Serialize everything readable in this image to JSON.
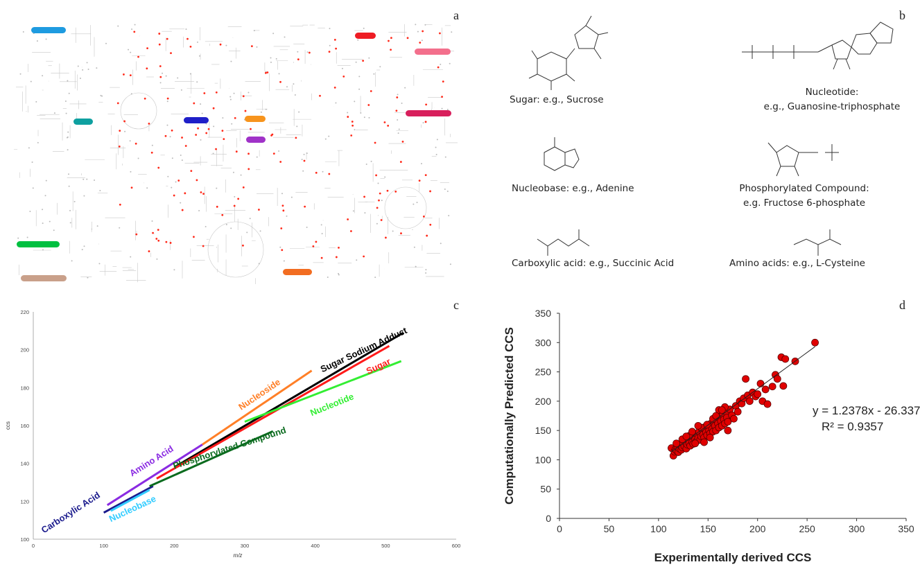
{
  "panels": {
    "a": {
      "letter": "a"
    },
    "b": {
      "letter": "b"
    },
    "c": {
      "letter": "c"
    },
    "d": {
      "letter": "d"
    }
  },
  "pathway_map": {
    "tag_colors": [
      "#1e9be0",
      "#ee1c24",
      "#f36f8c",
      "#0ea0a0",
      "#1f1fc8",
      "#f7941d",
      "#a032c8",
      "#d81f5c",
      "#00c040",
      "#c9a08a",
      "#f26d21"
    ],
    "highlight_color": "#ff2a1a"
  },
  "molecules": {
    "sugar": {
      "caption": "Sugar: e.g., Sucrose",
      "icon": "sucrose-structure"
    },
    "nucleotide": {
      "caption_line1": "Nucleotide:",
      "caption_line2": "e.g., Guanosine-triphosphate",
      "icon": "gtp-structure"
    },
    "nucleobase": {
      "caption": "Nucleobase: e.g., Adenine",
      "icon": "adenine-structure"
    },
    "phosphorylated": {
      "caption_line1": "Phosphorylated Compound:",
      "caption_line2": "e.g. Fructose 6-phosphate",
      "icon": "fructose-6-phosphate-structure"
    },
    "carboxylic": {
      "caption": "Carboxylic acid: e.g., Succinic Acid",
      "icon": "succinic-acid-structure"
    },
    "amino": {
      "caption": "Amino acids: e.g., L-Cysteine",
      "icon": "l-cysteine-structure"
    }
  },
  "chart_data": [
    {
      "type": "line",
      "title": "",
      "xlabel": "m/z",
      "ylabel": "ccs",
      "xlim": [
        0,
        600
      ],
      "ylim": [
        100,
        220
      ],
      "xticks": [
        0,
        100,
        200,
        300,
        400,
        500,
        600
      ],
      "yticks": [
        100,
        120,
        140,
        160,
        180,
        200,
        220
      ],
      "series": [
        {
          "name": "Carboxylic Acid",
          "color": "#1a1a8c",
          "x": [
            100,
            170
          ],
          "y": [
            114,
            128
          ]
        },
        {
          "name": "Nucleobase",
          "color": "#33ccff",
          "x": [
            110,
            165
          ],
          "y": [
            115,
            126
          ]
        },
        {
          "name": "Amino Acid",
          "color": "#8a2be2",
          "x": [
            105,
            240
          ],
          "y": [
            118,
            150
          ]
        },
        {
          "name": "Nucleoside",
          "color": "#ff7f27",
          "x": [
            240,
            395
          ],
          "y": [
            150,
            189
          ]
        },
        {
          "name": "Phosphorylated Compound",
          "color": "#0a6b1e",
          "x": [
            165,
            340
          ],
          "y": [
            128,
            157
          ]
        },
        {
          "name": "Sugar Sodium Adduct",
          "color": "#000000",
          "x": [
            200,
            525
          ],
          "y": [
            138,
            209
          ]
        },
        {
          "name": "Sugar",
          "color": "#ff1a1a",
          "x": [
            175,
            505
          ],
          "y": [
            132,
            202
          ]
        },
        {
          "name": "Nucleotide",
          "color": "#33ee33",
          "x": [
            300,
            522
          ],
          "y": [
            162,
            194
          ]
        }
      ]
    },
    {
      "type": "scatter",
      "title": "",
      "xlabel": "Experimentally derived CCS",
      "ylabel": "Computationally Predicted CCS",
      "xlim": [
        0,
        350
      ],
      "ylim": [
        0,
        350
      ],
      "xticks": [
        0,
        50,
        100,
        150,
        200,
        250,
        300,
        350
      ],
      "yticks": [
        0,
        50,
        100,
        150,
        200,
        250,
        300,
        350
      ],
      "marker_color": "#e00000",
      "trendline": {
        "slope": 1.2378,
        "intercept": -26.337,
        "x_range": [
          113,
          258
        ]
      },
      "equation": "y = 1.2378x - 26.337",
      "r2_label": "R² = 0.9357",
      "points": [
        [
          113,
          120
        ],
        [
          115,
          107
        ],
        [
          116,
          114
        ],
        [
          117,
          118
        ],
        [
          118,
          116
        ],
        [
          119,
          122
        ],
        [
          120,
          113
        ],
        [
          121,
          119
        ],
        [
          122,
          125
        ],
        [
          123,
          117
        ],
        [
          124,
          121
        ],
        [
          125,
          128
        ],
        [
          126,
          123
        ],
        [
          127,
          130
        ],
        [
          128,
          119
        ],
        [
          129,
          126
        ],
        [
          130,
          133
        ],
        [
          131,
          128
        ],
        [
          132,
          124
        ],
        [
          133,
          138
        ],
        [
          134,
          130
        ],
        [
          135,
          127
        ],
        [
          136,
          141
        ],
        [
          137,
          135
        ],
        [
          138,
          131
        ],
        [
          139,
          144
        ],
        [
          140,
          137
        ],
        [
          141,
          148
        ],
        [
          142,
          134
        ],
        [
          143,
          140
        ],
        [
          144,
          152
        ],
        [
          145,
          143
        ],
        [
          146,
          138
        ],
        [
          147,
          156
        ],
        [
          148,
          147
        ],
        [
          149,
          142
        ],
        [
          150,
          159
        ],
        [
          151,
          150
        ],
        [
          152,
          145
        ],
        [
          153,
          162
        ],
        [
          154,
          153
        ],
        [
          155,
          148
        ],
        [
          156,
          165
        ],
        [
          157,
          158
        ],
        [
          158,
          150
        ],
        [
          159,
          170
        ],
        [
          160,
          162
        ],
        [
          161,
          155
        ],
        [
          162,
          174
        ],
        [
          163,
          166
        ],
        [
          164,
          158
        ],
        [
          165,
          178
        ],
        [
          166,
          169
        ],
        [
          167,
          162
        ],
        [
          168,
          182
        ],
        [
          169,
          172
        ],
        [
          170,
          165
        ],
        [
          172,
          186
        ],
        [
          174,
          176
        ],
        [
          176,
          170
        ],
        [
          178,
          192
        ],
        [
          180,
          182
        ],
        [
          182,
          200
        ],
        [
          184,
          196
        ],
        [
          186,
          205
        ],
        [
          188,
          238
        ],
        [
          190,
          210
        ],
        [
          192,
          200
        ],
        [
          195,
          215
        ],
        [
          198,
          208
        ],
        [
          200,
          212
        ],
        [
          203,
          230
        ],
        [
          205,
          200
        ],
        [
          208,
          220
        ],
        [
          210,
          195
        ],
        [
          215,
          225
        ],
        [
          218,
          245
        ],
        [
          220,
          238
        ],
        [
          224,
          275
        ],
        [
          226,
          226
        ],
        [
          228,
          272
        ],
        [
          238,
          268
        ],
        [
          258,
          300
        ],
        [
          118,
          128
        ],
        [
          124,
          135
        ],
        [
          131,
          141
        ],
        [
          137,
          128
        ],
        [
          143,
          155
        ],
        [
          149,
          160
        ],
        [
          155,
          170
        ],
        [
          161,
          185
        ],
        [
          167,
          190
        ],
        [
          128,
          140
        ],
        [
          134,
          148
        ],
        [
          140,
          158
        ],
        [
          146,
          130
        ],
        [
          152,
          138
        ],
        [
          158,
          175
        ],
        [
          164,
          185
        ],
        [
          170,
          150
        ]
      ]
    }
  ]
}
